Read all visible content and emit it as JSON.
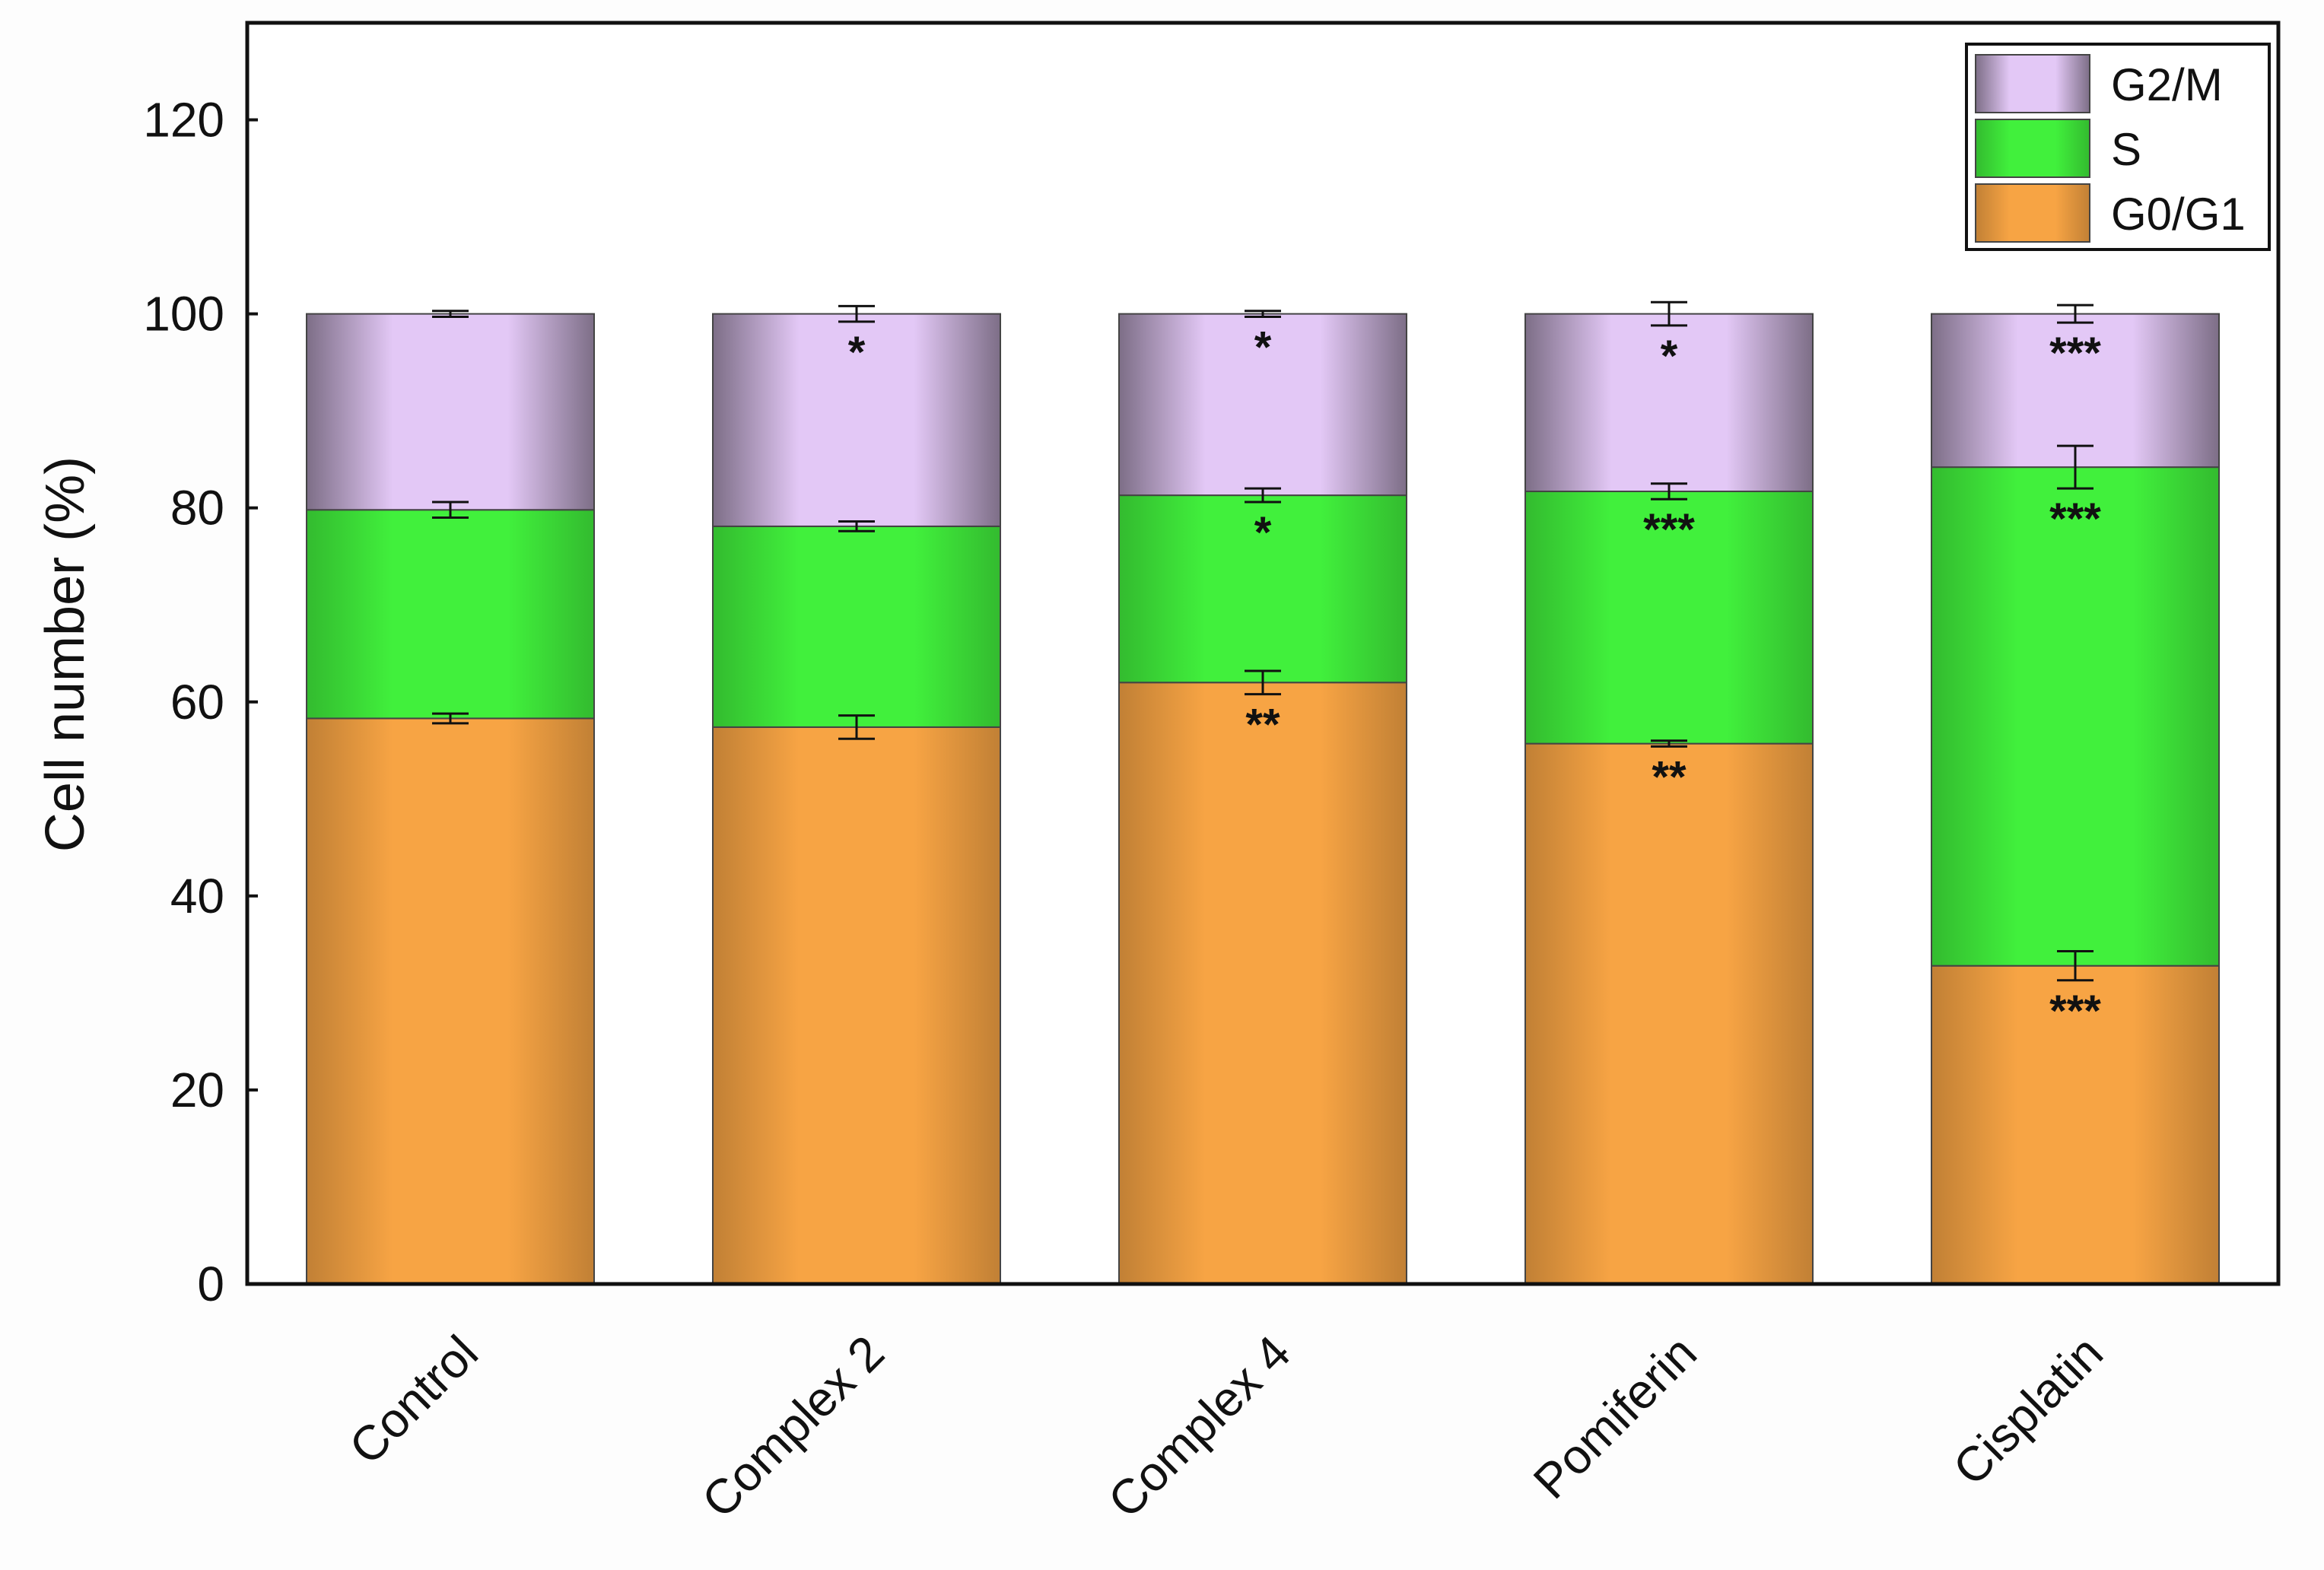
{
  "chart_data": {
    "type": "bar",
    "stacked": true,
    "categories": [
      "Control",
      "Complex 2",
      "Complex 4",
      "Pomiferin",
      "Cisplatin"
    ],
    "series": [
      {
        "name": "G0/G1",
        "color": "#f7a444",
        "values": [
          58.3,
          57.4,
          62.0,
          55.7,
          32.8
        ],
        "errors": [
          0.5,
          1.2,
          1.2,
          0.3,
          1.5
        ],
        "significance": [
          "",
          "",
          "**",
          "**",
          "***"
        ]
      },
      {
        "name": "S",
        "color": "#41f03c",
        "values": [
          21.5,
          20.7,
          19.3,
          26.0,
          51.4
        ],
        "errors": [
          0.8,
          0.5,
          0.7,
          0.8,
          2.2
        ],
        "significance": [
          "",
          "",
          "*",
          "***",
          "***"
        ]
      },
      {
        "name": "G2/M",
        "color": "#e3c8f6",
        "values": [
          20.2,
          21.9,
          18.7,
          18.3,
          15.8
        ],
        "errors": [
          0.3,
          0.8,
          0.3,
          1.2,
          0.9
        ],
        "significance": [
          "",
          "*",
          "*",
          "*",
          "***"
        ]
      }
    ],
    "xlabel": "",
    "ylabel": "Cell number (%)",
    "ylim": [
      0,
      130
    ],
    "yticks": [
      "0",
      "20",
      "40",
      "60",
      "80",
      "100",
      "120"
    ],
    "legend_position": "top-right",
    "grid": false
  }
}
